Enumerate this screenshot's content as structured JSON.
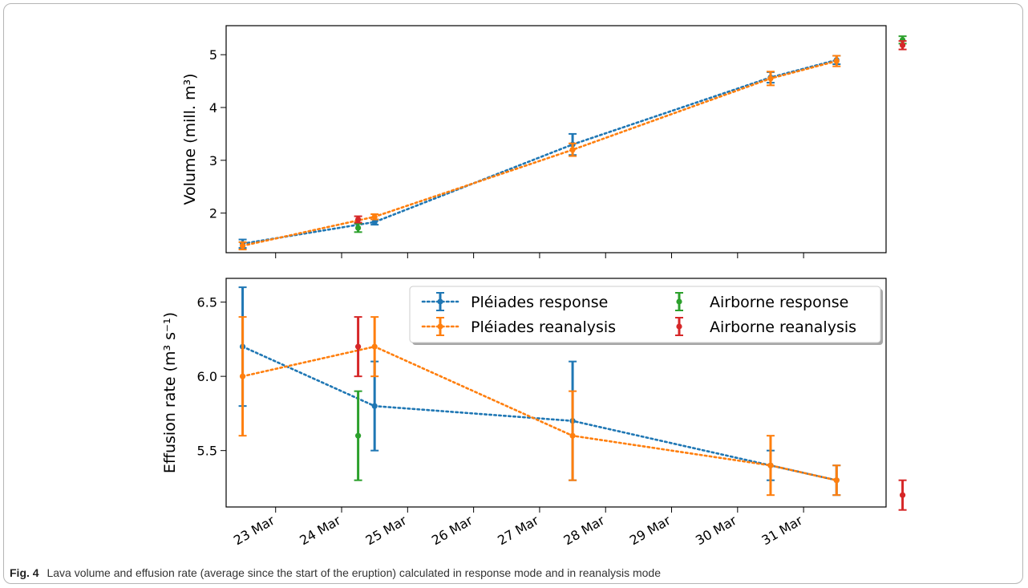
{
  "caption": {
    "label": "Fig. 4",
    "text": "Lava volume and effusion rate (average since the start of the eruption) calculated in response mode and in reanalysis mode"
  },
  "chart_data": [
    {
      "type": "scatter",
      "ylabel": "Volume (mill. m³)",
      "ylim": [
        1.25,
        5.55
      ],
      "yticks": [
        2,
        3,
        4,
        5
      ],
      "xlim": [
        "2021-03-22 06:00",
        "2021-04-01 06:00"
      ],
      "x_axis_dates": true,
      "grid": false,
      "series": [
        {
          "name": "Pléiades response",
          "color": "#1f77b4",
          "style": "dotted-line-with-errorbars",
          "points": [
            {
              "x": "2021-03-22 12:00",
              "y": 1.42,
              "err": 0.08
            },
            {
              "x": "2021-03-24 12:00",
              "y": 1.83,
              "err": 0.05
            },
            {
              "x": "2021-03-27 12:00",
              "y": 3.3,
              "err": 0.2
            },
            {
              "x": "2021-03-30 12:00",
              "y": 4.57,
              "err": 0.1
            },
            {
              "x": "2021-03-31 12:00",
              "y": 4.9,
              "err": 0.08
            }
          ]
        },
        {
          "name": "Pléiades reanalysis",
          "color": "#ff7f0e",
          "style": "dotted-line-with-errorbars",
          "points": [
            {
              "x": "2021-03-22 12:00",
              "y": 1.38,
              "err": 0.07
            },
            {
              "x": "2021-03-24 12:00",
              "y": 1.93,
              "err": 0.05
            },
            {
              "x": "2021-03-27 12:00",
              "y": 3.2,
              "err": 0.12
            },
            {
              "x": "2021-03-30 12:00",
              "y": 4.55,
              "err": 0.13
            },
            {
              "x": "2021-03-31 12:00",
              "y": 4.88,
              "err": 0.1
            }
          ]
        },
        {
          "name": "Airborne response",
          "color": "#2ca02c",
          "style": "errorbar-only",
          "points": [
            {
              "x": "2021-03-24 06:00",
              "y": 1.72,
              "err": 0.08
            },
            {
              "x": "2021-04-01 12:00",
              "y": 5.28,
              "err": 0.07
            }
          ]
        },
        {
          "name": "Airborne reanalysis",
          "color": "#d62728",
          "style": "errorbar-only",
          "points": [
            {
              "x": "2021-03-24 06:00",
              "y": 1.88,
              "err": 0.06
            },
            {
              "x": "2021-04-01 12:00",
              "y": 5.18,
              "err": 0.08
            }
          ]
        }
      ]
    },
    {
      "type": "scatter",
      "ylabel": "Effusion rate (m³ s⁻¹)",
      "ylim": [
        5.12,
        6.66
      ],
      "yticks": [
        5.5,
        6.0,
        6.5
      ],
      "xlim": [
        "2021-03-22 06:00",
        "2021-04-01 06:00"
      ],
      "x_axis_dates": true,
      "xticks": [
        "23 Mar",
        "24 Mar",
        "25 Mar",
        "26 Mar",
        "27 Mar",
        "28 Mar",
        "29 Mar",
        "30 Mar",
        "31 Mar"
      ],
      "xtick_values": [
        "2021-03-23",
        "2021-03-24",
        "2021-03-25",
        "2021-03-26",
        "2021-03-27",
        "2021-03-28",
        "2021-03-29",
        "2021-03-30",
        "2021-03-31"
      ],
      "legend": "upper-right, 2 columns",
      "grid": false,
      "series": [
        {
          "name": "Pléiades response",
          "color": "#1f77b4",
          "style": "dotted-line-with-errorbars",
          "points": [
            {
              "x": "2021-03-22 12:00",
              "y": 6.2,
              "err": 0.4
            },
            {
              "x": "2021-03-24 12:00",
              "y": 5.8,
              "err": 0.3
            },
            {
              "x": "2021-03-27 12:00",
              "y": 5.7,
              "err": 0.4
            },
            {
              "x": "2021-03-30 12:00",
              "y": 5.4,
              "err": 0.1
            },
            {
              "x": "2021-03-31 12:00",
              "y": 5.3,
              "err": 0.1
            }
          ]
        },
        {
          "name": "Pléiades reanalysis",
          "color": "#ff7f0e",
          "style": "dotted-line-with-errorbars",
          "points": [
            {
              "x": "2021-03-22 12:00",
              "y": 6.0,
              "err": 0.4
            },
            {
              "x": "2021-03-24 12:00",
              "y": 6.2,
              "err": 0.2
            },
            {
              "x": "2021-03-27 12:00",
              "y": 5.6,
              "err": 0.3
            },
            {
              "x": "2021-03-30 12:00",
              "y": 5.4,
              "err": 0.2
            },
            {
              "x": "2021-03-31 12:00",
              "y": 5.3,
              "err": 0.1
            }
          ]
        },
        {
          "name": "Airborne response",
          "color": "#2ca02c",
          "style": "errorbar-only",
          "points": [
            {
              "x": "2021-03-24 06:00",
              "y": 5.6,
              "err": 0.3
            }
          ]
        },
        {
          "name": "Airborne reanalysis",
          "color": "#d62728",
          "style": "errorbar-only",
          "points": [
            {
              "x": "2021-03-24 06:00",
              "y": 6.2,
              "err": 0.2
            },
            {
              "x": "2021-04-01 12:00",
              "y": 5.2,
              "err": 0.1
            }
          ]
        }
      ]
    }
  ]
}
